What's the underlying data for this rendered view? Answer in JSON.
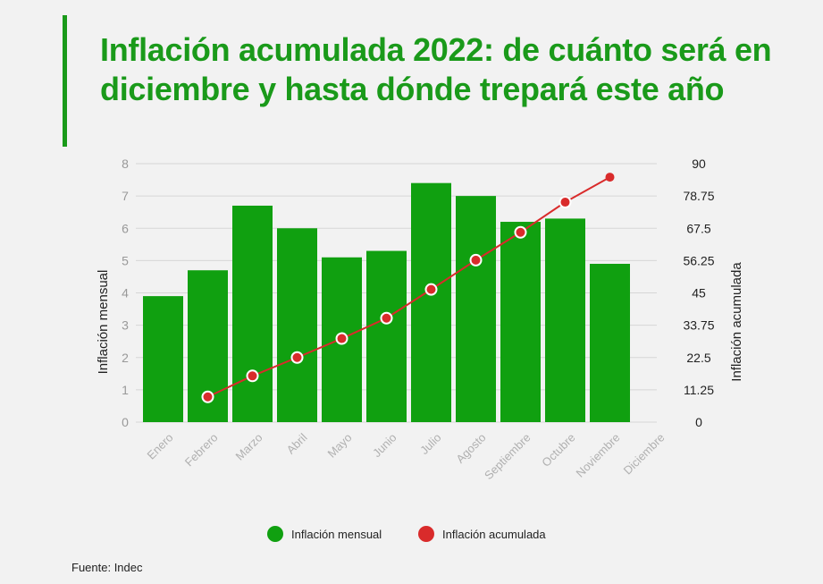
{
  "header": {
    "title": "Inflación acumulada 2022: de cuánto será en diciembre y hasta dónde trepará este año"
  },
  "footer": {
    "source": "Fuente: Indec"
  },
  "colors": {
    "accent": "#1a9a1a",
    "bar": "#10a010",
    "line": "#d92b2b"
  },
  "chart_data": {
    "type": "bar",
    "categories": [
      "Enero",
      "Febrero",
      "Marzo",
      "Abril",
      "Mayo",
      "Junio",
      "Julio",
      "Agosto",
      "Septiembre",
      "Octubre",
      "Noviembre",
      "Diciembre"
    ],
    "series": [
      {
        "name": "Inflación mensual",
        "type": "bar",
        "axis": "left",
        "values": [
          3.9,
          4.7,
          6.7,
          6.0,
          5.1,
          5.3,
          7.4,
          7.0,
          6.2,
          6.3,
          4.9,
          null
        ]
      },
      {
        "name": "Inflación acumulada",
        "type": "line",
        "axis": "right",
        "values": [
          null,
          8.8,
          16.1,
          22.5,
          29.1,
          36.2,
          46.2,
          56.4,
          66.1,
          76.6,
          85.3,
          null
        ]
      }
    ],
    "ylabel": "Inflación mensual",
    "ylabel_right": "Inflación acumulada",
    "ylim": [
      0,
      8
    ],
    "ylim_right": [
      0,
      90
    ],
    "yticks": [
      "0",
      "1",
      "2",
      "3",
      "4",
      "5",
      "6",
      "7",
      "8"
    ],
    "yticks_right": [
      "0",
      "11.25",
      "22.5",
      "33.75",
      "45",
      "56.25",
      "67.5",
      "78.75",
      "90"
    ],
    "grid": true,
    "legend": "bottom"
  }
}
